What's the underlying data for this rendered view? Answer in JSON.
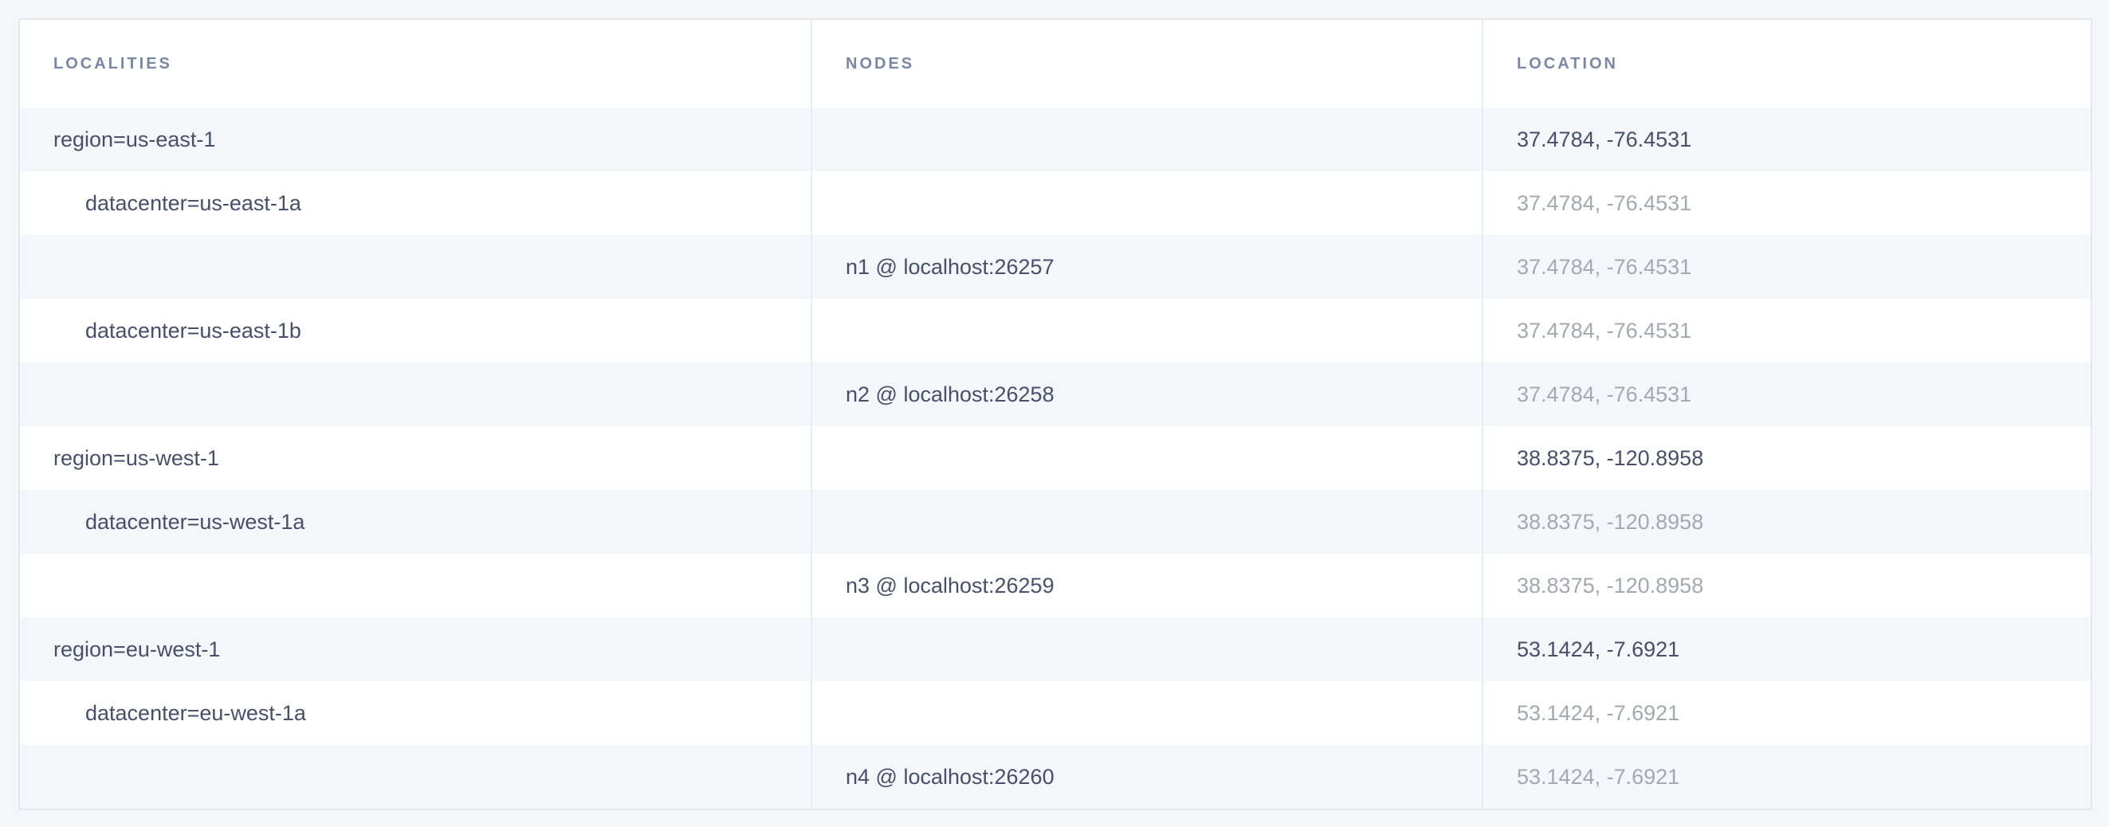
{
  "table": {
    "headers": {
      "localities": "LOCALITIES",
      "nodes": "NODES",
      "location": "LOCATION"
    },
    "rows": [
      {
        "level": "region",
        "locality": "region=us-east-1",
        "node": "",
        "location": "37.4784, -76.4531"
      },
      {
        "level": "datacenter",
        "locality": "datacenter=us-east-1a",
        "node": "",
        "location": "37.4784, -76.4531"
      },
      {
        "level": "node",
        "locality": "",
        "node": "n1 @ localhost:26257",
        "location": "37.4784, -76.4531"
      },
      {
        "level": "datacenter",
        "locality": "datacenter=us-east-1b",
        "node": "",
        "location": "37.4784, -76.4531"
      },
      {
        "level": "node",
        "locality": "",
        "node": "n2 @ localhost:26258",
        "location": "37.4784, -76.4531"
      },
      {
        "level": "region",
        "locality": "region=us-west-1",
        "node": "",
        "location": "38.8375, -120.8958"
      },
      {
        "level": "datacenter",
        "locality": "datacenter=us-west-1a",
        "node": "",
        "location": "38.8375, -120.8958"
      },
      {
        "level": "node",
        "locality": "",
        "node": "n3 @ localhost:26259",
        "location": "38.8375, -120.8958"
      },
      {
        "level": "region",
        "locality": "region=eu-west-1",
        "node": "",
        "location": "53.1424, -7.6921"
      },
      {
        "level": "datacenter",
        "locality": "datacenter=eu-west-1a",
        "node": "",
        "location": "53.1424, -7.6921"
      },
      {
        "level": "node",
        "locality": "",
        "node": "n4 @ localhost:26260",
        "location": "53.1424, -7.6921"
      }
    ]
  },
  "colors": {
    "page_background": "#f5f6fa",
    "row_stripe": "#f4f6fa",
    "row_white": "#ffffff",
    "border": "#e3e8f0",
    "column_divider": "#e7ebf2",
    "header_text": "#7b87a4",
    "text_dark": "#46506a",
    "text_muted": "#a4a8af"
  }
}
